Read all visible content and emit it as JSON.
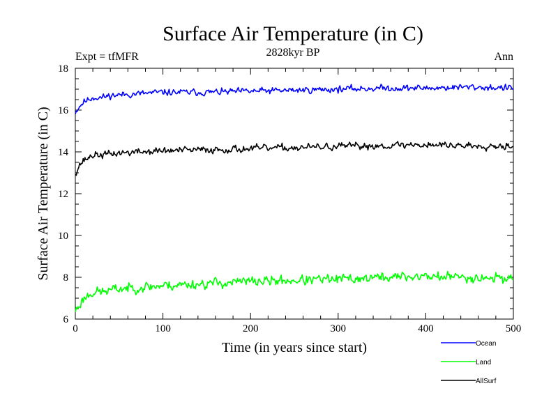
{
  "chart_data": {
    "type": "line",
    "title": "Surface Air Temperature (in C)",
    "subtitle_left": "Expt = tfMFR",
    "subtitle_center": "2828kyr BP",
    "subtitle_right": "Ann",
    "xlabel": "Time (in years since start)",
    "ylabel": "Surface Air Temperature (in C)",
    "xlim": [
      0,
      500
    ],
    "ylim": [
      6,
      18
    ],
    "xticks": [
      0,
      100,
      200,
      300,
      400,
      500
    ],
    "yticks": [
      6,
      8,
      10,
      12,
      14,
      16,
      18
    ],
    "series": [
      {
        "name": "Ocean",
        "color": "#0000ff",
        "anchors": [
          [
            0,
            15.9
          ],
          [
            5,
            16.2
          ],
          [
            10,
            16.4
          ],
          [
            20,
            16.6
          ],
          [
            30,
            16.6
          ],
          [
            40,
            16.7
          ],
          [
            60,
            16.75
          ],
          [
            100,
            16.85
          ],
          [
            150,
            16.85
          ],
          [
            200,
            16.9
          ],
          [
            250,
            16.95
          ],
          [
            300,
            17.0
          ],
          [
            350,
            17.05
          ],
          [
            400,
            17.05
          ],
          [
            450,
            17.1
          ],
          [
            500,
            17.05
          ]
        ],
        "noise": 0.09,
        "seed": 11
      },
      {
        "name": "Land",
        "color": "#00ff00",
        "anchors": [
          [
            0,
            6.4
          ],
          [
            5,
            6.7
          ],
          [
            10,
            7.0
          ],
          [
            20,
            7.3
          ],
          [
            30,
            7.3
          ],
          [
            50,
            7.45
          ],
          [
            100,
            7.6
          ],
          [
            150,
            7.7
          ],
          [
            200,
            7.8
          ],
          [
            250,
            7.85
          ],
          [
            300,
            7.9
          ],
          [
            350,
            8.0
          ],
          [
            400,
            8.05
          ],
          [
            450,
            8.0
          ],
          [
            500,
            7.95
          ]
        ],
        "noise": 0.14,
        "seed": 23
      },
      {
        "name": "AllSurf",
        "color": "#000000",
        "anchors": [
          [
            0,
            13.0
          ],
          [
            5,
            13.4
          ],
          [
            10,
            13.6
          ],
          [
            20,
            13.85
          ],
          [
            30,
            13.85
          ],
          [
            50,
            13.95
          ],
          [
            100,
            14.05
          ],
          [
            150,
            14.1
          ],
          [
            200,
            14.15
          ],
          [
            250,
            14.2
          ],
          [
            300,
            14.25
          ],
          [
            350,
            14.3
          ],
          [
            400,
            14.35
          ],
          [
            450,
            14.3
          ],
          [
            500,
            14.3
          ]
        ],
        "noise": 0.1,
        "seed": 37
      }
    ]
  }
}
